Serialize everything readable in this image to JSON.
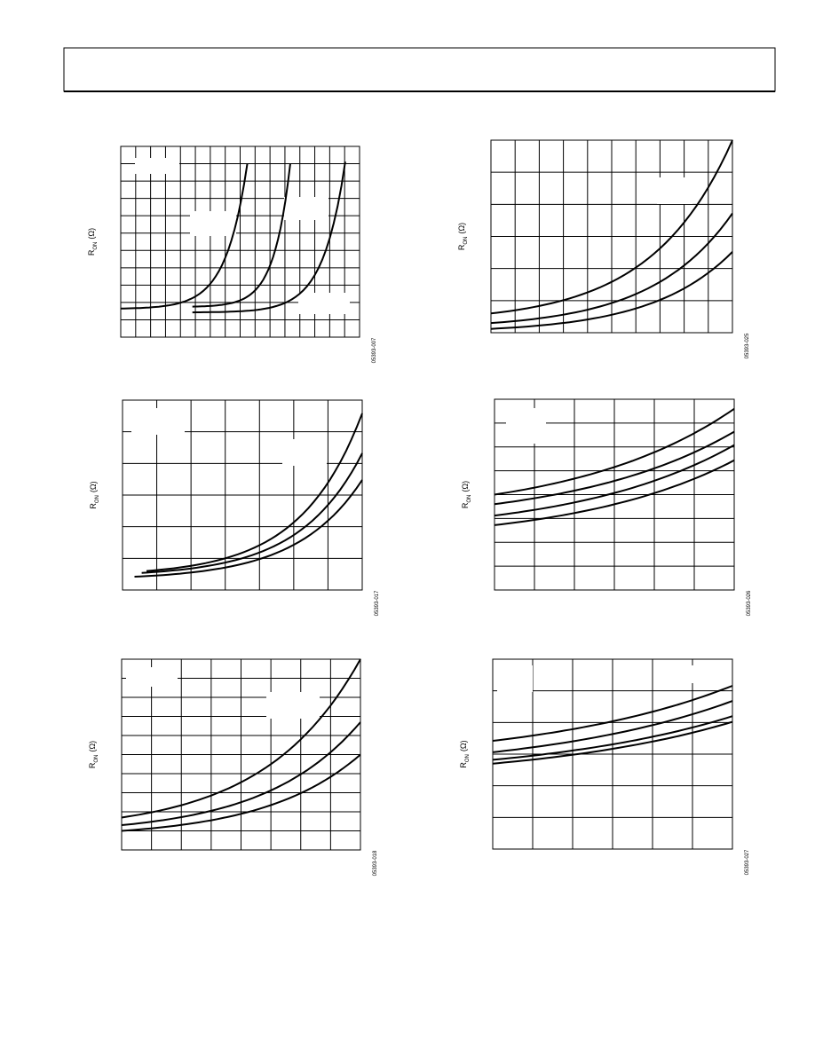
{
  "figures": [
    {
      "y_label": "R",
      "y_label_sub": "ON",
      "y_unit": "(Ω)",
      "code": "05393-007"
    },
    {
      "y_label": "R",
      "y_label_sub": "ON",
      "y_unit": "(Ω)",
      "code": "05393-025"
    },
    {
      "y_label": "R",
      "y_label_sub": "ON",
      "y_unit": "(Ω)",
      "code": "05393-017"
    },
    {
      "y_label": "R",
      "y_label_sub": "ON",
      "y_unit": "(Ω)",
      "code": "05393-026"
    },
    {
      "y_label": "R",
      "y_label_sub": "ON",
      "y_unit": "(Ω)",
      "code": "05393-018"
    },
    {
      "y_label": "R",
      "y_label_sub": "ON",
      "y_unit": "(Ω)",
      "code": "05393-027"
    }
  ]
}
